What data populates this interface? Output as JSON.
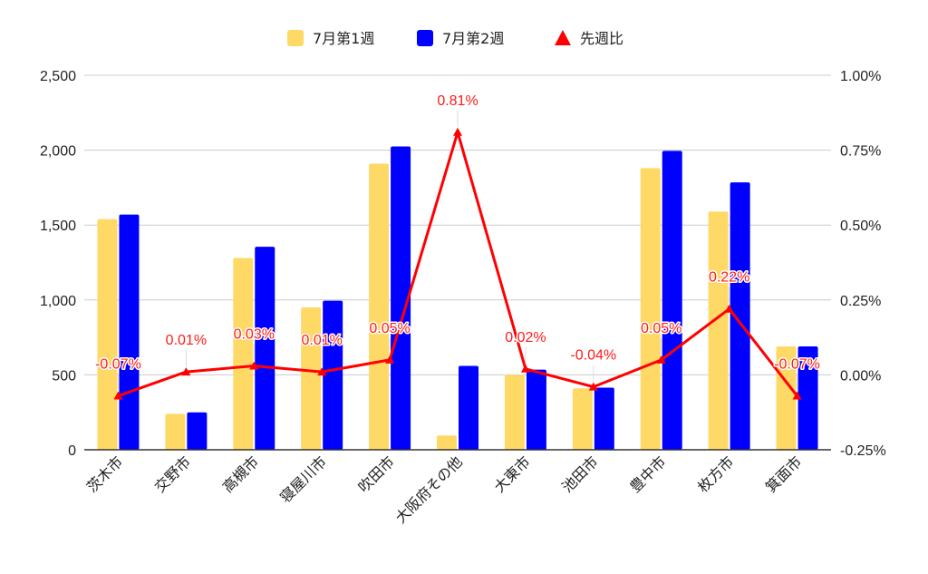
{
  "chart_data": {
    "type": "bar",
    "title": "",
    "categories": [
      "茨木市",
      "交野市",
      "高槻市",
      "寝屋川市",
      "吹田市",
      "大阪府その他",
      "大東市",
      "池田市",
      "豊中市",
      "枚方市",
      "箕面市"
    ],
    "series": [
      {
        "name": "7月第1週",
        "type": "bar",
        "axis": "left",
        "color": "#ffd966",
        "values": [
          1540,
          240,
          1280,
          950,
          1910,
          95,
          500,
          410,
          1880,
          1590,
          690
        ]
      },
      {
        "name": "7月第2週",
        "type": "bar",
        "axis": "left",
        "color": "#0000ff",
        "values": [
          1570,
          250,
          1355,
          995,
          2025,
          560,
          535,
          415,
          1995,
          1785,
          690
        ]
      },
      {
        "name": "先週比",
        "type": "line",
        "axis": "right",
        "color": "#ff0000",
        "values": [
          -0.07,
          0.01,
          0.03,
          0.01,
          0.05,
          0.81,
          0.02,
          -0.04,
          0.05,
          0.22,
          -0.07
        ],
        "labels": [
          "-0.07%",
          "0.01%",
          "0.03%",
          "0.01%",
          "0.05%",
          "0.81%",
          "0.02%",
          "-0.04%",
          "0.05%",
          "0.22%",
          "-0.07%"
        ]
      }
    ],
    "y_left": {
      "min": 0,
      "max": 2500,
      "ticks": [
        "0",
        "500",
        "1,000",
        "1,500",
        "2,000",
        "2,500"
      ]
    },
    "y_right": {
      "min": -0.25,
      "max": 1.0,
      "ticks": [
        "-0.25%",
        "0.00%",
        "0.25%",
        "0.50%",
        "0.75%",
        "1.00%"
      ]
    },
    "grid": true,
    "legend": {
      "position": "top"
    },
    "xlabel": "",
    "ylabel": ""
  }
}
